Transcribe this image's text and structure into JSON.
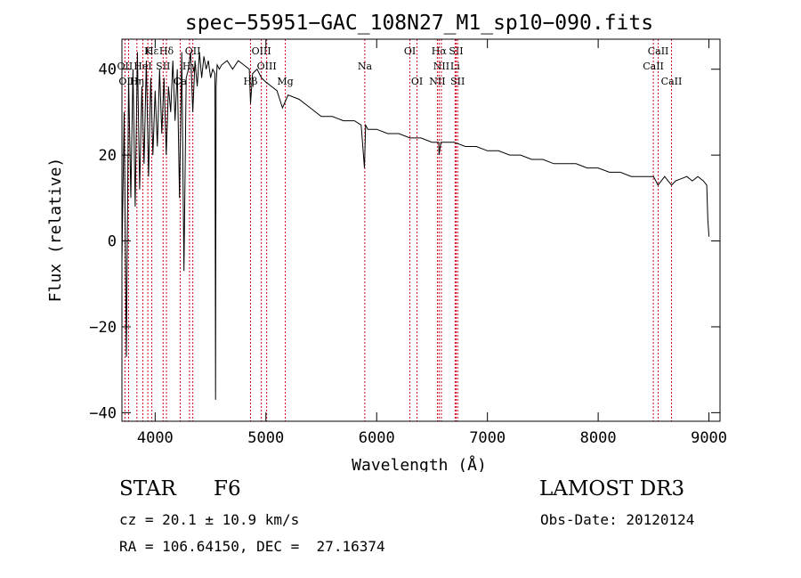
{
  "chart_data": {
    "type": "line",
    "title": "spec−55951−GAC_108N27_M1_sp10−090.fits",
    "xlabel": "Wavelength (Å)",
    "ylabel": "Flux (relative)",
    "xlim": [
      3700,
      9100
    ],
    "ylim": [
      -42,
      47
    ],
    "xticks": [
      4000,
      5000,
      6000,
      7000,
      8000,
      9000
    ],
    "xtick_labels": [
      "4000",
      "5000",
      "6000",
      "7000",
      "8000",
      "9000"
    ],
    "yticks": [
      -40,
      -20,
      0,
      20,
      40
    ],
    "ytick_labels": [
      "−40",
      "−20",
      "0",
      "20",
      "40"
    ],
    "series": [
      {
        "name": "flux",
        "x": [
          3700,
          3720,
          3740,
          3760,
          3780,
          3800,
          3820,
          3840,
          3860,
          3880,
          3900,
          3920,
          3940,
          3960,
          3980,
          4000,
          4020,
          4040,
          4060,
          4080,
          4100,
          4120,
          4140,
          4160,
          4180,
          4200,
          4220,
          4240,
          4260,
          4280,
          4300,
          4320,
          4340,
          4360,
          4380,
          4400,
          4420,
          4440,
          4460,
          4480,
          4500,
          4520,
          4540,
          4545,
          4550,
          4560,
          4580,
          4600,
          4650,
          4700,
          4750,
          4800,
          4850,
          4861,
          4880,
          4920,
          4960,
          5000,
          5050,
          5100,
          5150,
          5200,
          5300,
          5400,
          5500,
          5600,
          5700,
          5800,
          5860,
          5890,
          5900,
          5920,
          6000,
          6100,
          6200,
          6300,
          6400,
          6500,
          6560,
          6563,
          6580,
          6650,
          6700,
          6800,
          6900,
          7000,
          7100,
          7200,
          7300,
          7400,
          7500,
          7600,
          7700,
          7800,
          7900,
          8000,
          8100,
          8200,
          8300,
          8400,
          8500,
          8540,
          8600,
          8662,
          8700,
          8800,
          8850,
          8900,
          8950,
          8980,
          8990,
          9000
        ],
        "values": [
          -5,
          30,
          -27,
          38,
          10,
          40,
          8,
          44,
          12,
          36,
          18,
          42,
          15,
          38,
          20,
          35,
          22,
          40,
          25,
          38,
          20,
          36,
          30,
          42,
          28,
          40,
          10,
          44,
          -7,
          38,
          40,
          44,
          30,
          42,
          36,
          44,
          38,
          43,
          40,
          42,
          38,
          40,
          39,
          -37,
          36,
          41,
          40,
          41,
          42,
          40,
          42,
          41,
          40,
          32,
          39,
          40,
          38,
          37,
          36,
          35,
          31,
          34,
          33,
          31,
          29,
          29,
          28,
          28,
          27,
          17,
          27,
          26,
          26,
          25,
          25,
          24,
          24,
          23,
          23,
          20,
          23,
          23,
          23,
          22,
          22,
          21,
          21,
          20,
          20,
          19,
          19,
          18,
          18,
          18,
          17,
          17,
          16,
          16,
          15,
          15,
          15,
          13,
          15,
          13,
          14,
          15,
          14,
          15,
          14,
          13,
          5,
          1
        ]
      }
    ],
    "line_markers": [
      {
        "label": "Hε",
        "x": 3970,
        "row": 0,
        "color": "#d0021b"
      },
      {
        "label": "K",
        "x": 3934,
        "row": 0,
        "color": "#d0021b"
      },
      {
        "label": "Hδ",
        "x": 4102,
        "row": 0,
        "color": "#d0021b"
      },
      {
        "label": "OII",
        "x": 4340,
        "row": 0,
        "color": "#d0021b"
      },
      {
        "label": "OIII",
        "x": 4959,
        "row": 0,
        "color": "#d0021b"
      },
      {
        "label": "OI",
        "x": 6300,
        "row": 0,
        "color": "#d0021b"
      },
      {
        "label": "Hα",
        "x": 6563,
        "row": 0,
        "color": "#d0021b"
      },
      {
        "label": "SII",
        "x": 6717,
        "row": 0,
        "color": "#d0021b"
      },
      {
        "label": "CaII",
        "x": 8542,
        "row": 0,
        "color": "#d0021b"
      },
      {
        "label": "OII",
        "x": 3727,
        "row": 1,
        "color": "#d0021b"
      },
      {
        "label": "HeI",
        "x": 3889,
        "row": 1,
        "color": "#d0021b"
      },
      {
        "label": "SII",
        "x": 4072,
        "row": 1,
        "color": "#d0021b"
      },
      {
        "label": "Hγ",
        "x": 4310,
        "row": 1,
        "color": "#d0021b"
      },
      {
        "label": "OIII",
        "x": 5007,
        "row": 1,
        "color": "#d0021b"
      },
      {
        "label": "Na",
        "x": 5893,
        "row": 1,
        "color": "#d0021b"
      },
      {
        "label": "NII",
        "x": 6584,
        "row": 1,
        "color": "#d0021b"
      },
      {
        "label": "Li",
        "x": 6708,
        "row": 1,
        "color": "#d0021b"
      },
      {
        "label": "CaII",
        "x": 8498,
        "row": 1,
        "color": "#d0021b"
      },
      {
        "label": "OIII",
        "x": 3760,
        "row": 2,
        "color": "#d0021b"
      },
      {
        "label": "Hη",
        "x": 3835,
        "row": 2,
        "color": "#d0021b"
      },
      {
        "label": "Ca",
        "x": 4226,
        "row": 2,
        "color": "#d0021b"
      },
      {
        "label": "Hβ",
        "x": 4861,
        "row": 2,
        "color": "#d0021b"
      },
      {
        "label": "Mg",
        "x": 5175,
        "row": 2,
        "color": "#d0021b"
      },
      {
        "label": "OI",
        "x": 6364,
        "row": 2,
        "color": "#d0021b"
      },
      {
        "label": "NII",
        "x": 6548,
        "row": 2,
        "color": "#d0021b"
      },
      {
        "label": "SII",
        "x": 6731,
        "row": 2,
        "color": "#d0021b"
      },
      {
        "label": "CaII",
        "x": 8662,
        "row": 2,
        "color": "#d0021b"
      }
    ],
    "line_color": "#000000"
  },
  "info": {
    "object_class": "STAR",
    "subclass": "F6",
    "survey": "LAMOST DR3",
    "cz": "cz = 20.1 ± 10.9 km/s",
    "obs_date": "Obs-Date: 20120124",
    "radec": "RA = 106.64150, DEC =  27.16374"
  }
}
